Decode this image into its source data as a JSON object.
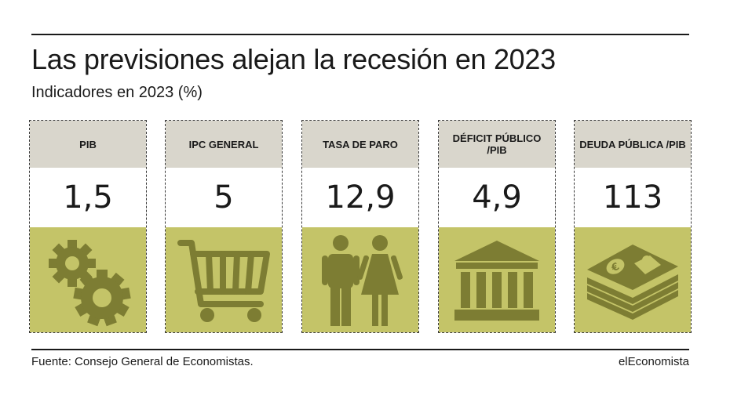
{
  "title": "Las previsiones alejan la recesión en 2023",
  "subtitle": "Indicadores en 2023 (%)",
  "cards": [
    {
      "label": "PIB",
      "value": "1,5",
      "icon": "gears-icon"
    },
    {
      "label": "IPC GENERAL",
      "value": "5",
      "icon": "shopping-cart-icon"
    },
    {
      "label": "TASA DE PARO",
      "value": "12,9",
      "icon": "people-icon"
    },
    {
      "label": "DÉFICIT PÚBLICO /PIB",
      "value": "4,9",
      "icon": "bank-building-icon"
    },
    {
      "label": "DEUDA PÚBLICA /PIB",
      "value": "113",
      "icon": "money-stack-icon"
    }
  ],
  "footer": {
    "source": "Fuente: Consejo General de Economistas.",
    "brand": "elEconomista"
  },
  "colors": {
    "header_bg": "#d9d6cc",
    "icon_bg": "#c4c468",
    "icon_fg": "#7d7d33"
  }
}
